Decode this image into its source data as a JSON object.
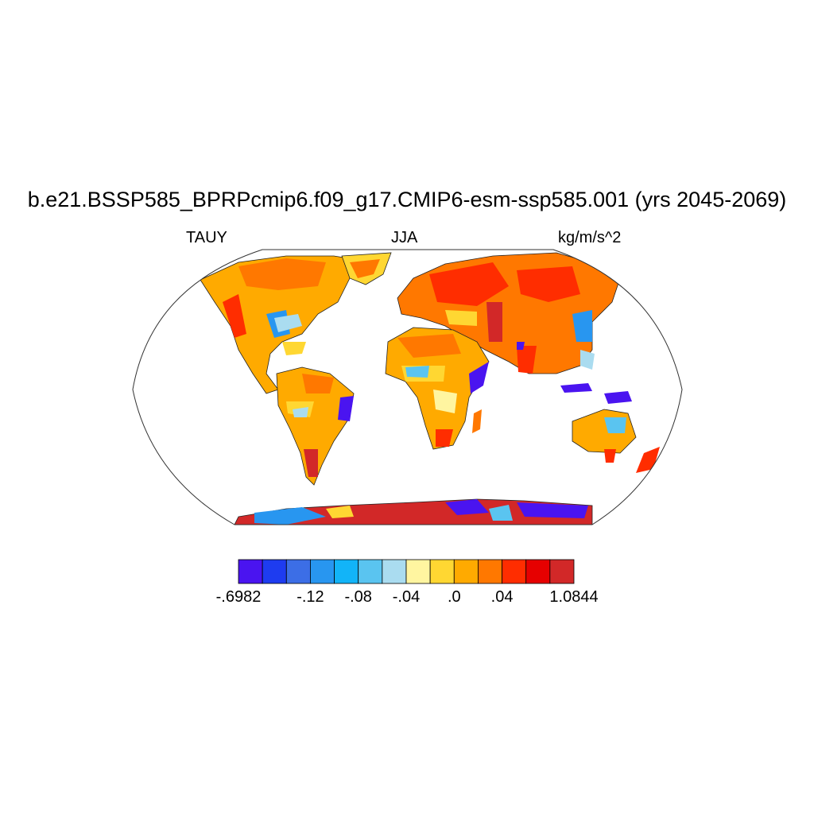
{
  "title": "b.e21.BSSP585_BPRPcmip6.f09_g17.CMIP6-esm-ssp585.001 (yrs 2045-2069)",
  "variable": "TAUY",
  "season": "JJA",
  "units": "kg/m/s^2",
  "colorbar": {
    "colors": [
      "#4a14f0",
      "#1e3cf0",
      "#3c6ee6",
      "#2896f0",
      "#12b4f8",
      "#5ac4f0",
      "#aadcf0",
      "#fff5a0",
      "#ffd732",
      "#ffaa00",
      "#ff7800",
      "#ff2d00",
      "#e60000",
      "#d22828"
    ],
    "labels": [
      {
        "text": "-.6982",
        "index": 0
      },
      {
        "text": "-.12",
        "index": 3
      },
      {
        "text": "-.08",
        "index": 5
      },
      {
        "text": "-.04",
        "index": 7
      },
      {
        "text": ".0",
        "index": 9
      },
      {
        "text": ".04",
        "index": 11
      },
      {
        "text": "1.0844",
        "index": 14
      }
    ]
  }
}
